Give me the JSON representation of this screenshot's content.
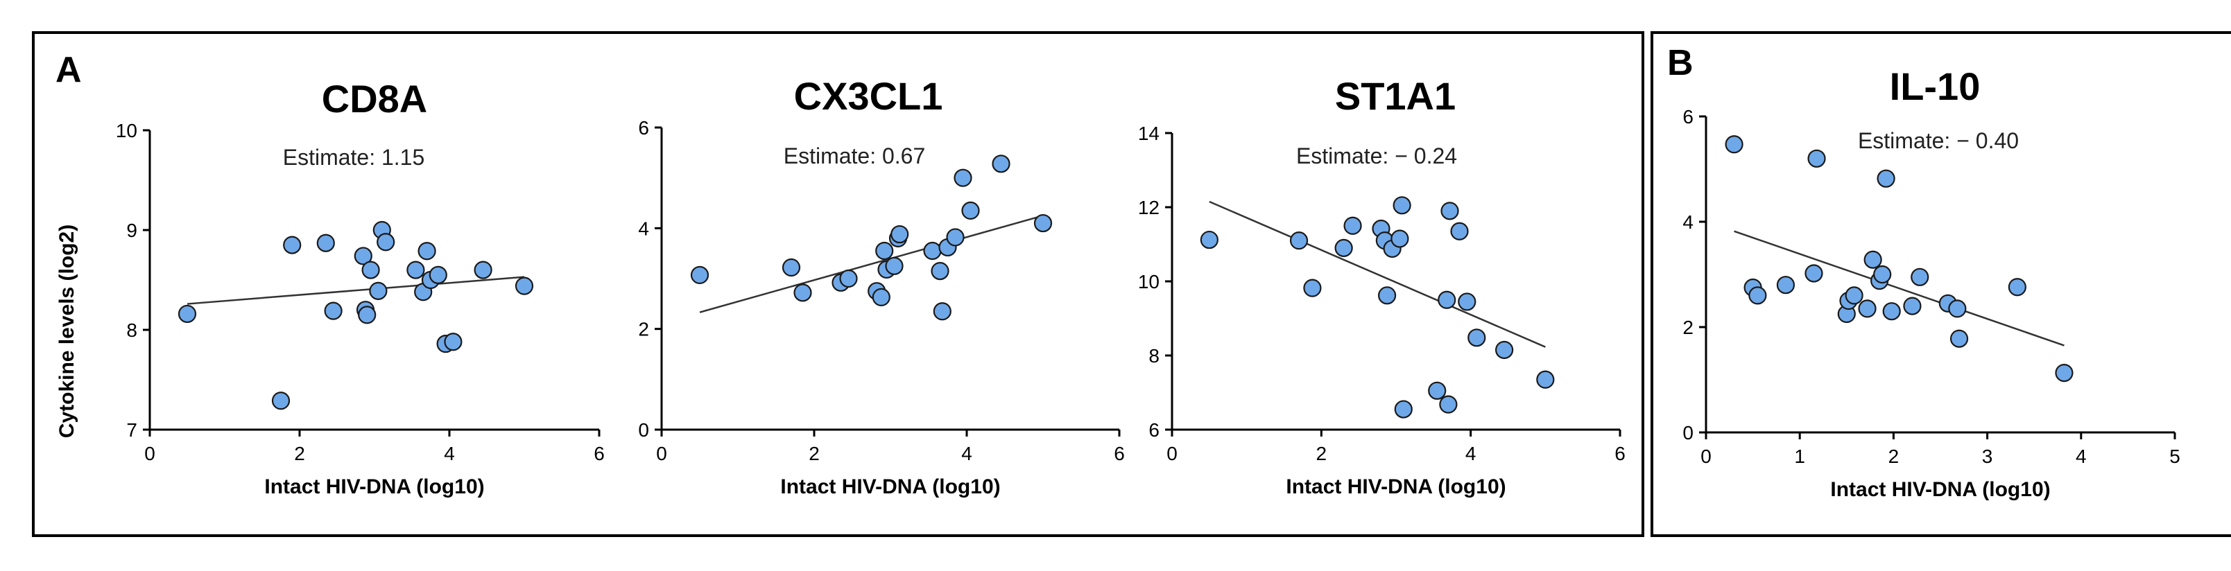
{
  "panel_letters": {
    "a": "A",
    "b": "B"
  },
  "shared_ylabel": "Cytokine levels (log2)",
  "colors": {
    "point_fill": "#6fa8e8",
    "point_stroke": "#1a1a1a",
    "axis": "#000000",
    "fit_line": "#333333",
    "frame": "#000000"
  },
  "chart_data": [
    {
      "type": "scatter",
      "title": "CD8A",
      "estimate_label": "Estimate: 1.15",
      "xlabel": "Intact HIV-DNA (log10)",
      "ylabel": "Cytokine levels (log2)",
      "xlim": [
        0,
        6
      ],
      "ylim": [
        7,
        10
      ],
      "xticks": [
        0,
        2,
        4,
        6
      ],
      "yticks": [
        7,
        8,
        9,
        10
      ],
      "xtick_labels": [
        "0",
        "2",
        "4",
        "6"
      ],
      "ytick_labels": [
        "7",
        "8",
        "9",
        "10"
      ],
      "fit_line": [
        [
          0.5,
          8.26
        ],
        [
          5.0,
          8.53
        ]
      ],
      "points": [
        [
          0.5,
          8.16
        ],
        [
          1.75,
          7.29
        ],
        [
          1.9,
          8.85
        ],
        [
          2.35,
          8.87
        ],
        [
          2.45,
          8.19
        ],
        [
          2.85,
          8.74
        ],
        [
          2.88,
          8.2
        ],
        [
          2.9,
          8.15
        ],
        [
          2.95,
          8.6
        ],
        [
          3.05,
          8.39
        ],
        [
          3.1,
          9.0
        ],
        [
          3.15,
          8.88
        ],
        [
          3.55,
          8.6
        ],
        [
          3.65,
          8.38
        ],
        [
          3.7,
          8.79
        ],
        [
          3.75,
          8.5
        ],
        [
          3.85,
          8.55
        ],
        [
          3.95,
          7.86
        ],
        [
          4.05,
          7.88
        ],
        [
          4.45,
          8.6
        ],
        [
          5.0,
          8.44
        ]
      ]
    },
    {
      "type": "scatter",
      "title": "CX3CL1",
      "estimate_label": "Estimate: 0.67",
      "xlabel": "Intact HIV-DNA (log10)",
      "ylabel": "",
      "xlim": [
        0,
        6
      ],
      "ylim": [
        0,
        6
      ],
      "xticks": [
        0,
        2,
        4,
        6
      ],
      "yticks": [
        0,
        2,
        4,
        6
      ],
      "xtick_labels": [
        "0",
        "2",
        "4",
        "6"
      ],
      "ytick_labels": [
        "0",
        "2",
        "4",
        "6"
      ],
      "fit_line": [
        [
          0.5,
          2.33
        ],
        [
          5.0,
          4.25
        ]
      ],
      "points": [
        [
          0.5,
          3.07
        ],
        [
          1.7,
          3.22
        ],
        [
          1.85,
          2.72
        ],
        [
          2.35,
          2.92
        ],
        [
          2.45,
          3.0
        ],
        [
          2.82,
          2.75
        ],
        [
          2.88,
          2.63
        ],
        [
          2.92,
          3.55
        ],
        [
          2.95,
          3.18
        ],
        [
          3.05,
          3.25
        ],
        [
          3.1,
          3.8
        ],
        [
          3.12,
          3.88
        ],
        [
          3.55,
          3.55
        ],
        [
          3.65,
          3.15
        ],
        [
          3.68,
          2.35
        ],
        [
          3.75,
          3.62
        ],
        [
          3.85,
          3.82
        ],
        [
          3.95,
          5.0
        ],
        [
          4.05,
          4.35
        ],
        [
          4.45,
          5.28
        ],
        [
          5.0,
          4.1
        ]
      ]
    },
    {
      "type": "scatter",
      "title": "ST1A1",
      "estimate_label": "Estimate: − 0.24",
      "xlabel": "Intact HIV-DNA (log10)",
      "ylabel": "",
      "xlim": [
        0,
        6
      ],
      "ylim": [
        6,
        14
      ],
      "xticks": [
        0,
        2,
        4,
        6
      ],
      "yticks": [
        6,
        8,
        10,
        12,
        14
      ],
      "xtick_labels": [
        "0",
        "2",
        "4",
        "6"
      ],
      "ytick_labels": [
        "6",
        "8",
        "10",
        "12",
        "14"
      ],
      "fit_line": [
        [
          0.5,
          12.15
        ],
        [
          5.0,
          8.23
        ]
      ],
      "points": [
        [
          0.5,
          11.12
        ],
        [
          1.7,
          11.1
        ],
        [
          1.88,
          9.82
        ],
        [
          2.3,
          10.9
        ],
        [
          2.42,
          11.5
        ],
        [
          2.8,
          11.42
        ],
        [
          2.85,
          11.1
        ],
        [
          2.88,
          9.62
        ],
        [
          2.95,
          10.88
        ],
        [
          3.05,
          11.15
        ],
        [
          3.08,
          12.05
        ],
        [
          3.1,
          6.55
        ],
        [
          3.55,
          7.05
        ],
        [
          3.68,
          9.5
        ],
        [
          3.7,
          6.68
        ],
        [
          3.72,
          11.9
        ],
        [
          3.85,
          11.35
        ],
        [
          3.95,
          9.45
        ],
        [
          4.08,
          8.48
        ],
        [
          4.45,
          8.15
        ],
        [
          5.0,
          7.35
        ]
      ]
    },
    {
      "type": "scatter",
      "title": "IL-10",
      "estimate_label": "Estimate: − 0.40",
      "xlabel": "Intact HIV-DNA (log10)",
      "ylabel": "",
      "xlim": [
        0,
        5
      ],
      "ylim": [
        0,
        6
      ],
      "xticks": [
        0,
        1,
        2,
        3,
        4,
        5
      ],
      "yticks": [
        0,
        2,
        4,
        6
      ],
      "xtick_labels": [
        "0",
        "1",
        "2",
        "3",
        "4",
        "5"
      ],
      "ytick_labels": [
        "0",
        "2",
        "4",
        "6"
      ],
      "fit_line": [
        [
          0.3,
          3.82
        ],
        [
          3.82,
          1.65
        ]
      ],
      "points": [
        [
          0.3,
          5.47
        ],
        [
          0.5,
          2.75
        ],
        [
          0.55,
          2.6
        ],
        [
          0.85,
          2.8
        ],
        [
          1.15,
          3.02
        ],
        [
          1.18,
          5.2
        ],
        [
          1.5,
          2.25
        ],
        [
          1.52,
          2.5
        ],
        [
          1.58,
          2.6
        ],
        [
          1.72,
          2.35
        ],
        [
          1.78,
          3.28
        ],
        [
          1.85,
          2.88
        ],
        [
          1.88,
          3.0
        ],
        [
          1.92,
          4.82
        ],
        [
          1.98,
          2.3
        ],
        [
          2.2,
          2.4
        ],
        [
          2.28,
          2.95
        ],
        [
          2.58,
          2.45
        ],
        [
          2.68,
          2.35
        ],
        [
          2.7,
          1.78
        ],
        [
          3.32,
          2.76
        ],
        [
          3.82,
          1.13
        ]
      ]
    }
  ]
}
